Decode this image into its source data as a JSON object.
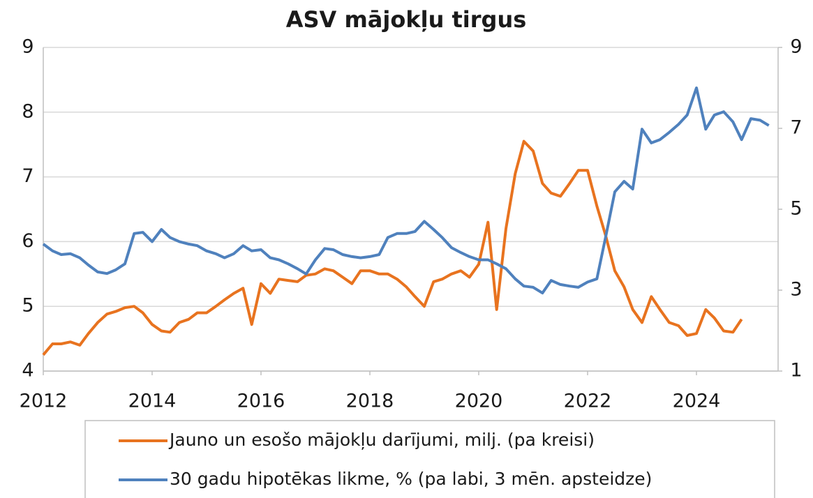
{
  "chart_data": {
    "type": "line",
    "title": "ASV mājokļu tirgus",
    "x": [
      2012,
      2012.17,
      2012.33,
      2012.5,
      2012.67,
      2012.83,
      2013,
      2013.17,
      2013.33,
      2013.5,
      2013.67,
      2013.83,
      2014,
      2014.17,
      2014.33,
      2014.5,
      2014.67,
      2014.83,
      2015,
      2015.17,
      2015.33,
      2015.5,
      2015.67,
      2015.83,
      2016,
      2016.17,
      2016.33,
      2016.5,
      2016.67,
      2016.83,
      2017,
      2017.17,
      2017.33,
      2017.5,
      2017.67,
      2017.83,
      2018,
      2018.17,
      2018.33,
      2018.5,
      2018.67,
      2018.83,
      2019,
      2019.17,
      2019.33,
      2019.5,
      2019.67,
      2019.83,
      2020,
      2020.17,
      2020.33,
      2020.5,
      2020.67,
      2020.83,
      2021,
      2021.17,
      2021.33,
      2021.5,
      2021.67,
      2021.83,
      2022,
      2022.17,
      2022.33,
      2022.5,
      2022.67,
      2022.83,
      2023,
      2023.17,
      2023.33,
      2023.5,
      2023.67,
      2023.83,
      2024,
      2024.17,
      2024.33,
      2024.5,
      2024.67,
      2024.83,
      2025,
      2025.17,
      2025.33
    ],
    "series": [
      {
        "name": "Jauno un esošo mājokļu darījumi, milj. (pa kreisi)",
        "color": "#e8731f",
        "values": [
          4.25,
          4.42,
          4.42,
          4.45,
          4.4,
          4.58,
          4.75,
          4.88,
          4.92,
          4.98,
          5.0,
          4.9,
          4.72,
          4.62,
          4.6,
          4.75,
          4.8,
          4.9,
          4.9,
          5.0,
          5.1,
          5.2,
          5.28,
          4.72,
          5.35,
          5.2,
          5.42,
          5.4,
          5.38,
          5.48,
          5.5,
          5.58,
          5.55,
          5.45,
          5.35,
          5.55,
          5.55,
          5.5,
          5.5,
          5.42,
          5.3,
          5.15,
          5.0,
          5.38,
          5.42,
          5.5,
          5.55,
          5.45,
          5.65,
          6.3,
          4.95,
          6.2,
          7.05,
          7.55,
          7.4,
          6.9,
          6.75,
          6.7,
          6.9,
          7.1,
          7.1,
          6.55,
          6.1,
          5.55,
          5.3,
          4.95,
          4.75,
          5.15,
          4.95,
          4.75,
          4.7,
          4.55,
          4.58,
          4.95,
          4.82,
          4.62,
          4.6,
          4.8,
          null,
          null,
          null
        ]
      },
      {
        "name": "30 gadu hipotēkas likme, % (pa labi, 3 mēn. apsteidze)",
        "color": "#4f81bd",
        "axis": "y2",
        "values": [
          4.14,
          3.97,
          3.88,
          3.9,
          3.8,
          3.62,
          3.45,
          3.41,
          3.5,
          3.65,
          4.4,
          4.43,
          4.2,
          4.5,
          4.3,
          4.2,
          4.14,
          4.1,
          3.97,
          3.9,
          3.8,
          3.9,
          4.1,
          3.97,
          4.0,
          3.8,
          3.75,
          3.65,
          3.53,
          3.4,
          3.75,
          4.03,
          4.0,
          3.88,
          3.83,
          3.8,
          3.83,
          3.88,
          4.3,
          4.4,
          4.4,
          4.45,
          4.7,
          4.5,
          4.3,
          4.05,
          3.93,
          3.83,
          3.75,
          3.75,
          3.65,
          3.53,
          3.28,
          3.1,
          3.07,
          2.93,
          3.24,
          3.14,
          3.1,
          3.07,
          3.2,
          3.28,
          4.3,
          5.43,
          5.69,
          5.5,
          6.98,
          6.64,
          6.72,
          6.9,
          7.1,
          7.33,
          8.0,
          6.98,
          7.33,
          7.41,
          7.16,
          6.72,
          7.24,
          7.2,
          7.07
        ]
      }
    ],
    "xlim": [
      2012,
      2025.5
    ],
    "xticks": [
      2012,
      2014,
      2016,
      2018,
      2020,
      2022,
      2024
    ],
    "ylim": [
      4,
      9
    ],
    "yticks": [
      4,
      5,
      6,
      7,
      8,
      9
    ],
    "y2lim": [
      1,
      9
    ],
    "y2ticks": [
      1,
      3,
      5,
      7,
      9
    ],
    "grid": true
  }
}
